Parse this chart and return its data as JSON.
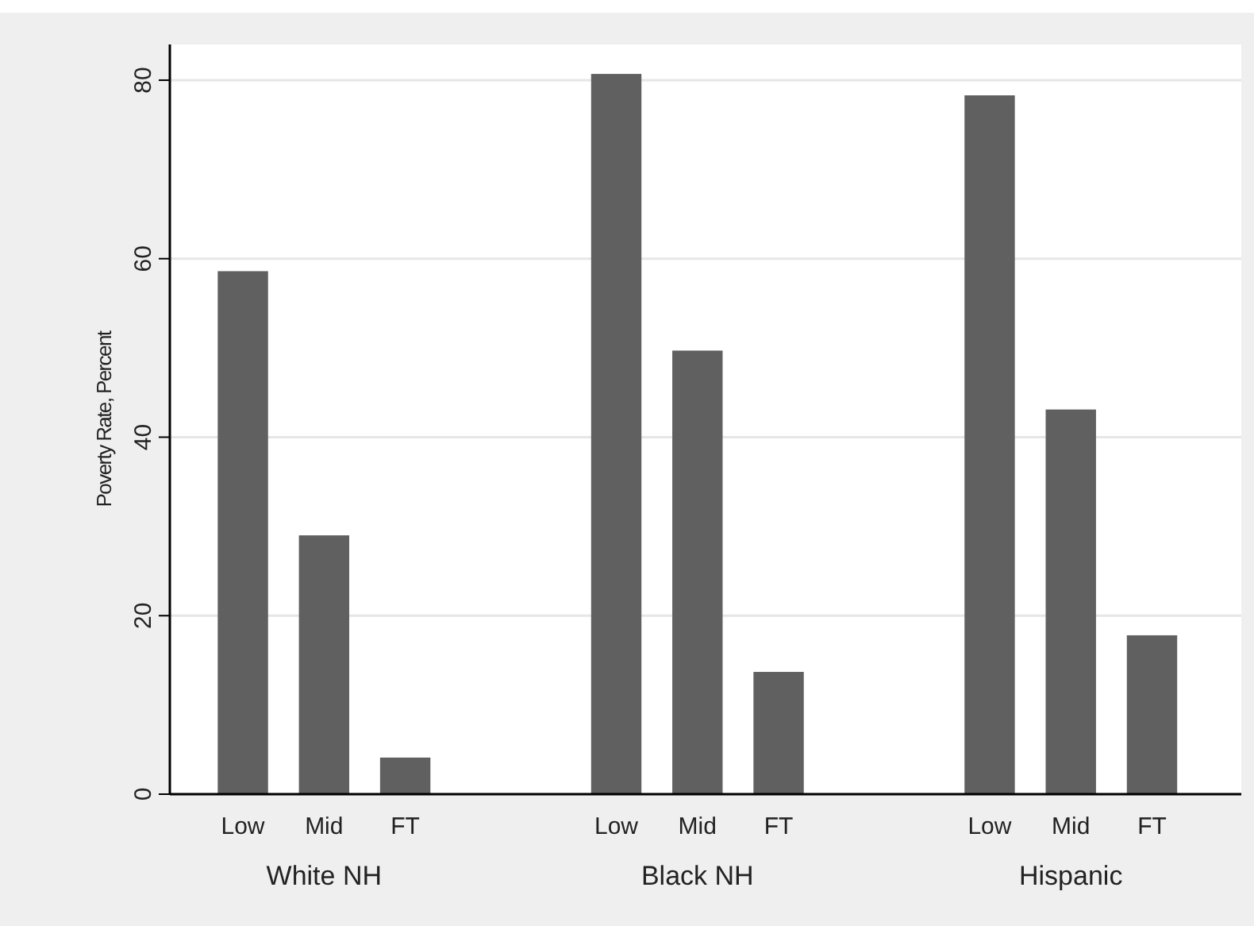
{
  "chart_data": {
    "type": "bar",
    "ylabel": "Poverty Rate, Percent",
    "categories": [
      "Low",
      "Mid",
      "FT",
      "Low",
      "Mid",
      "FT",
      "Low",
      "Mid",
      "FT"
    ],
    "values": [
      58.6,
      29.0,
      4.1,
      80.7,
      49.7,
      13.7,
      78.3,
      43.1,
      17.8
    ],
    "color": "#606060",
    "ylim": [
      0,
      84
    ],
    "yticks": [
      0,
      20,
      40,
      60,
      80
    ],
    "grid": "y",
    "annotations": [
      "White NH",
      "Black NH",
      "Hispanic"
    ]
  }
}
